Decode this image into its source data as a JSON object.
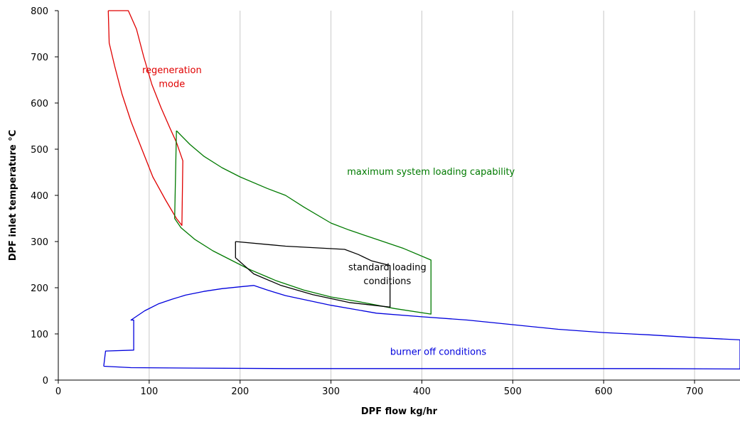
{
  "chart_data": {
    "type": "line",
    "xlabel": "DPF flow kg/hr",
    "ylabel": "DPF inlet temperature °C",
    "xlim": [
      0,
      750
    ],
    "ylim": [
      0,
      800
    ],
    "x_ticks": [
      "0",
      "100",
      "200",
      "300",
      "400",
      "500",
      "600",
      "700"
    ],
    "y_ticks": [
      "0",
      "100",
      "200",
      "300",
      "400",
      "500",
      "600",
      "700",
      "800"
    ],
    "grid": "vertical",
    "series": [
      {
        "color": "#e00000",
        "points": [
          [
            55,
            800
          ],
          [
            77,
            800
          ],
          [
            86,
            760
          ],
          [
            94,
            700
          ],
          [
            103,
            640
          ],
          [
            113,
            590
          ],
          [
            123,
            545
          ],
          [
            130,
            515
          ],
          [
            137,
            475
          ],
          [
            136,
            335
          ],
          [
            130,
            350
          ],
          [
            118,
            390
          ],
          [
            104,
            440
          ],
          [
            92,
            500
          ],
          [
            80,
            560
          ],
          [
            70,
            620
          ],
          [
            62,
            680
          ],
          [
            56,
            730
          ],
          [
            55,
            800
          ]
        ]
      },
      {
        "color": "#007a00",
        "points": [
          [
            130,
            540
          ],
          [
            145,
            510
          ],
          [
            160,
            485
          ],
          [
            180,
            460
          ],
          [
            200,
            440
          ],
          [
            230,
            415
          ],
          [
            250,
            400
          ],
          [
            270,
            375
          ],
          [
            300,
            340
          ],
          [
            320,
            325
          ],
          [
            350,
            305
          ],
          [
            380,
            285
          ],
          [
            410,
            260
          ],
          [
            410,
            143
          ],
          [
            370,
            155
          ],
          [
            330,
            170
          ],
          [
            300,
            180
          ],
          [
            270,
            195
          ],
          [
            240,
            215
          ],
          [
            210,
            240
          ],
          [
            190,
            260
          ],
          [
            170,
            280
          ],
          [
            150,
            305
          ],
          [
            135,
            330
          ],
          [
            128,
            350
          ],
          [
            130,
            540
          ]
        ]
      },
      {
        "color": "#000000",
        "points": [
          [
            195,
            300
          ],
          [
            250,
            290
          ],
          [
            315,
            283
          ],
          [
            330,
            272
          ],
          [
            345,
            258
          ],
          [
            365,
            248
          ],
          [
            365,
            158
          ],
          [
            320,
            168
          ],
          [
            280,
            185
          ],
          [
            245,
            205
          ],
          [
            215,
            230
          ],
          [
            195,
            265
          ],
          [
            195,
            300
          ]
        ]
      },
      {
        "color": "#0000dd",
        "points": [
          [
            50,
            30
          ],
          [
            80,
            27
          ],
          [
            150,
            26
          ],
          [
            250,
            25
          ],
          [
            400,
            25
          ],
          [
            550,
            25
          ],
          [
            650,
            25
          ],
          [
            750,
            24
          ],
          [
            750,
            87
          ],
          [
            700,
            92
          ],
          [
            650,
            98
          ],
          [
            600,
            103
          ],
          [
            550,
            110
          ],
          [
            500,
            120
          ],
          [
            450,
            130
          ],
          [
            400,
            137
          ],
          [
            350,
            145
          ],
          [
            300,
            162
          ],
          [
            250,
            183
          ],
          [
            230,
            195
          ],
          [
            215,
            205
          ],
          [
            200,
            202
          ],
          [
            180,
            198
          ],
          [
            160,
            192
          ],
          [
            140,
            184
          ],
          [
            125,
            175
          ],
          [
            110,
            165
          ],
          [
            95,
            150
          ],
          [
            80,
            130
          ],
          [
            83,
            130
          ],
          [
            83,
            65
          ],
          [
            52,
            63
          ],
          [
            50,
            30
          ]
        ]
      }
    ],
    "annotations": [
      {
        "text": "regeneration",
        "x": 125,
        "y": 665,
        "color": "#e00000"
      },
      {
        "text": "mode",
        "x": 125,
        "y": 635,
        "color": "#e00000"
      },
      {
        "text": "maximum system loading capability",
        "x": 410,
        "y": 445,
        "color": "#007a00"
      },
      {
        "text": "standard loading",
        "x": 362,
        "y": 238,
        "color": "#000000"
      },
      {
        "text": "conditions",
        "x": 362,
        "y": 208,
        "color": "#000000"
      },
      {
        "text": "burner off conditions",
        "x": 418,
        "y": 55,
        "color": "#0000dd"
      }
    ]
  }
}
